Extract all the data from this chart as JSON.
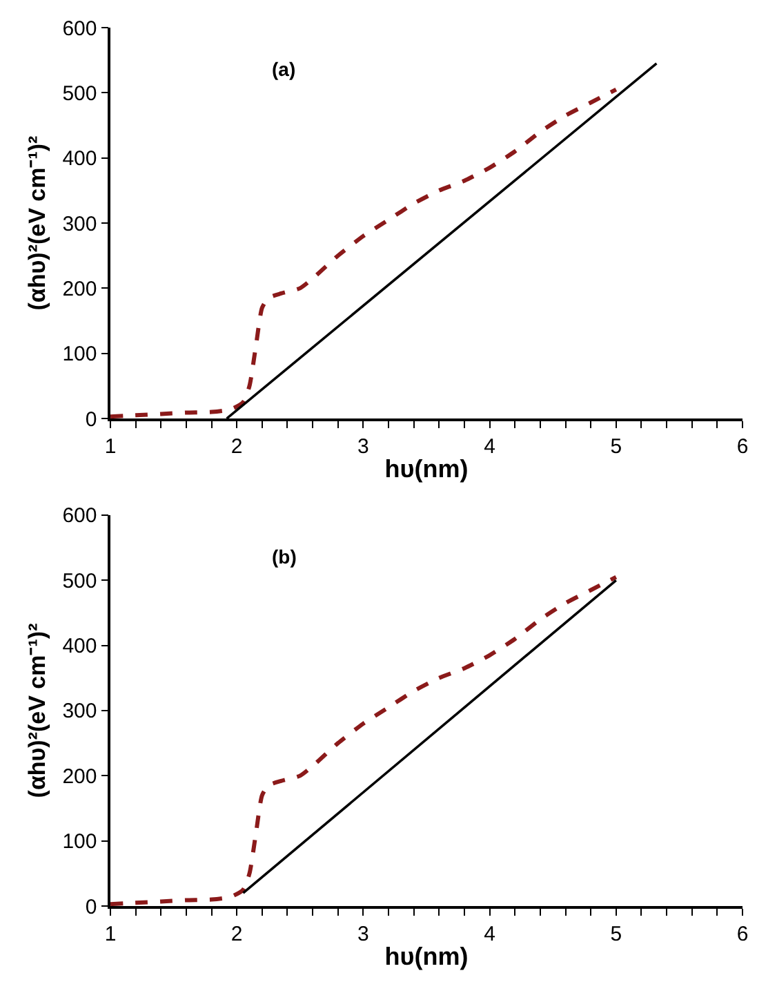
{
  "chart_data": [
    {
      "type": "line",
      "annotations": [
        "(a)"
      ],
      "xlabel": "hυ(nm)",
      "ylabel": "(αhυ)²(eV cm⁻¹)²",
      "xlim": [
        1,
        6
      ],
      "ylim": [
        0,
        600
      ],
      "xticks": [
        1,
        {
          "value": 1.2,
          "label": null
        },
        {
          "value": 1.4,
          "label": null
        },
        {
          "value": 1.6,
          "label": null
        },
        {
          "value": 1.8,
          "label": null
        },
        2,
        {
          "value": 2.2,
          "label": null
        },
        {
          "value": 2.4,
          "label": null
        },
        {
          "value": 2.6,
          "label": null
        },
        {
          "value": 2.8,
          "label": null
        },
        3,
        {
          "value": 3.2,
          "label": null
        },
        {
          "value": 3.4,
          "label": null
        },
        {
          "value": 3.6,
          "label": null
        },
        {
          "value": 3.8,
          "label": null
        },
        4,
        {
          "value": 4.2,
          "label": null
        },
        {
          "value": 4.4,
          "label": null
        },
        {
          "value": 4.6,
          "label": null
        },
        {
          "value": 4.8,
          "label": null
        },
        5,
        {
          "value": 5.2,
          "label": null
        },
        {
          "value": 5.4,
          "label": null
        },
        {
          "value": 5.6,
          "label": null
        },
        {
          "value": 5.8,
          "label": null
        },
        6
      ],
      "yticks": [
        0,
        100,
        200,
        300,
        400,
        500,
        600
      ],
      "series": [
        {
          "color": "#8b1a1a",
          "line_style": "dashed",
          "x": [
            1.0,
            1.2,
            1.4,
            1.6,
            1.8,
            1.95,
            2.05,
            2.1,
            2.15,
            2.2,
            2.25,
            2.35,
            2.5,
            2.6,
            2.8,
            3.0,
            3.2,
            3.4,
            3.6,
            3.8,
            4.0,
            4.2,
            4.4,
            4.6,
            4.8,
            5.0
          ],
          "values": [
            3,
            5,
            7,
            9,
            10,
            14,
            25,
            50,
            110,
            170,
            185,
            192,
            200,
            215,
            250,
            280,
            305,
            330,
            350,
            365,
            385,
            410,
            440,
            465,
            485,
            505
          ]
        },
        {
          "color": "#000000",
          "line_style": "solid",
          "x": [
            1.92,
            5.32
          ],
          "values": [
            0,
            545
          ]
        }
      ]
    },
    {
      "type": "line",
      "annotations": [
        "(b)"
      ],
      "xlabel": "hυ(nm)",
      "ylabel": "(αhυ)²(eV cm⁻¹)²",
      "xlim": [
        1,
        6
      ],
      "ylim": [
        0,
        600
      ],
      "xticks": [
        1,
        {
          "value": 1.2,
          "label": null
        },
        {
          "value": 1.4,
          "label": null
        },
        {
          "value": 1.6,
          "label": null
        },
        {
          "value": 1.8,
          "label": null
        },
        2,
        {
          "value": 2.2,
          "label": null
        },
        {
          "value": 2.4,
          "label": null
        },
        {
          "value": 2.6,
          "label": null
        },
        {
          "value": 2.8,
          "label": null
        },
        3,
        {
          "value": 3.2,
          "label": null
        },
        {
          "value": 3.4,
          "label": null
        },
        {
          "value": 3.6,
          "label": null
        },
        {
          "value": 3.8,
          "label": null
        },
        4,
        {
          "value": 4.2,
          "label": null
        },
        {
          "value": 4.4,
          "label": null
        },
        {
          "value": 4.6,
          "label": null
        },
        {
          "value": 4.8,
          "label": null
        },
        5,
        {
          "value": 5.2,
          "label": null
        },
        {
          "value": 5.4,
          "label": null
        },
        {
          "value": 5.6,
          "label": null
        },
        {
          "value": 5.8,
          "label": null
        },
        6
      ],
      "yticks": [
        0,
        100,
        200,
        300,
        400,
        500,
        600
      ],
      "series": [
        {
          "color": "#8b1a1a",
          "line_style": "dashed",
          "x": [
            1.0,
            1.2,
            1.4,
            1.6,
            1.8,
            1.95,
            2.05,
            2.1,
            2.15,
            2.2,
            2.25,
            2.35,
            2.5,
            2.6,
            2.8,
            3.0,
            3.2,
            3.4,
            3.6,
            3.8,
            4.0,
            4.2,
            4.4,
            4.6,
            4.8,
            5.0
          ],
          "values": [
            3,
            5,
            7,
            9,
            10,
            14,
            25,
            50,
            110,
            170,
            185,
            192,
            200,
            215,
            250,
            280,
            305,
            330,
            350,
            365,
            385,
            410,
            440,
            465,
            485,
            505
          ]
        },
        {
          "color": "#000000",
          "line_style": "solid",
          "x": [
            2.05,
            5.0
          ],
          "values": [
            20,
            500
          ]
        }
      ]
    }
  ]
}
